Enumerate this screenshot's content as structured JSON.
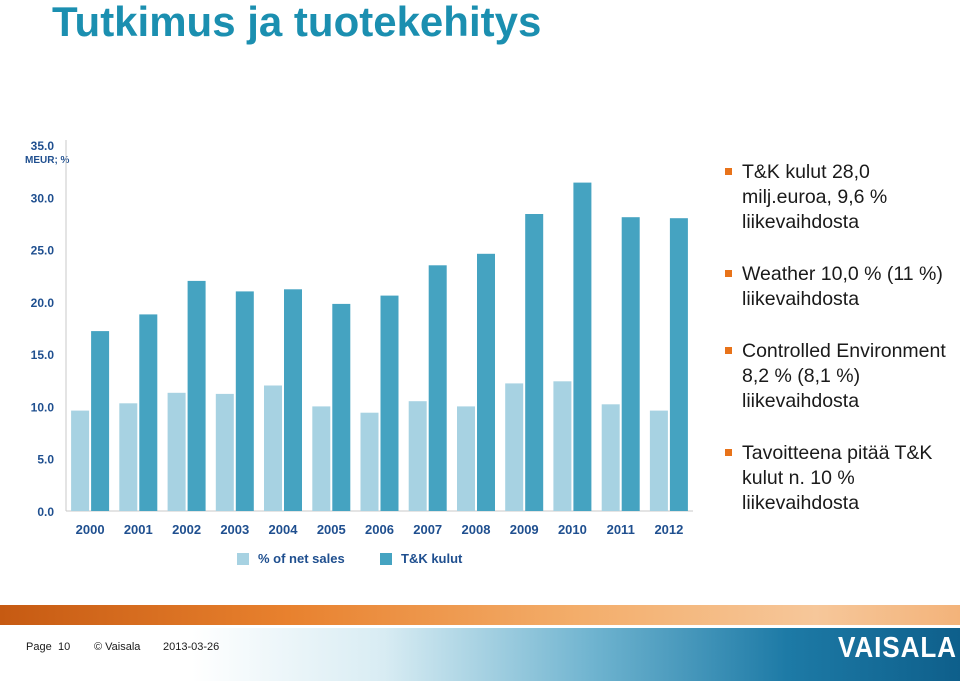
{
  "title": "Tutkimus ja tuotekehitys",
  "bullets": [
    "T&K kulut 28,0 milj.euroa, 9,6 % liikevaihdosta",
    "Weather 10,0 % (11 %) liikevaihdosta",
    "Controlled Environment 8,2 % (8,1 %) liikevaihdosta",
    "Tavoitteena pitää T&K kulut n. 10 % liikevaihdosta"
  ],
  "footer": {
    "page_label": "Page",
    "page_number": "10",
    "copyright": "© Vaisala",
    "date": "2013-03-26",
    "logo": "VAISALA"
  },
  "colors": {
    "title": "#1b8fb0",
    "bullet": "#e8731a",
    "series_light": "#a7d2e2",
    "series_dark": "#45a3c1",
    "axis_text": "#1f4f8f"
  },
  "chart_data": {
    "type": "bar",
    "ylabel": "MEUR; %",
    "ylim": [
      0,
      35
    ],
    "yticks": [
      "0.0",
      "5.0",
      "10.0",
      "15.0",
      "20.0",
      "25.0",
      "30.0",
      "35.0"
    ],
    "categories": [
      "2000",
      "2001",
      "2002",
      "2003",
      "2004",
      "2005",
      "2006",
      "2007",
      "2008",
      "2009",
      "2010",
      "2011",
      "2012"
    ],
    "series": [
      {
        "name": "% of net sales",
        "values": [
          9.6,
          10.3,
          11.3,
          11.2,
          12.0,
          10.0,
          9.4,
          10.5,
          10.0,
          12.2,
          12.4,
          10.2,
          9.6
        ]
      },
      {
        "name": "T&K kulut",
        "values": [
          17.2,
          18.8,
          22.0,
          21.0,
          21.2,
          19.8,
          20.6,
          23.5,
          24.6,
          28.4,
          31.4,
          28.1,
          28.0
        ]
      }
    ],
    "grid": false,
    "legend": "bottom"
  }
}
